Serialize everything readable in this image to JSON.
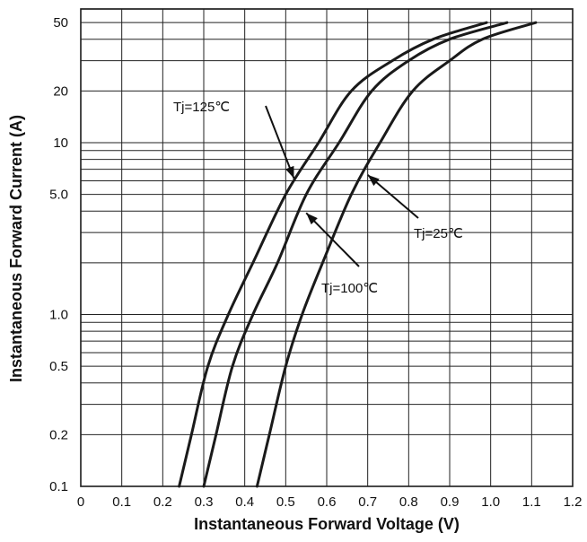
{
  "chart_data": {
    "type": "line",
    "title": "",
    "xlabel": "Instantaneous Forward Voltage (V)",
    "ylabel": "Instantaneous Forward Current (A)",
    "xlim": [
      0,
      1.2
    ],
    "ylim": [
      0.1,
      60
    ],
    "y_scale": "log",
    "grid": true,
    "legend": "none",
    "x_ticks": [
      0,
      0.1,
      0.2,
      0.3,
      0.4,
      0.5,
      0.6,
      0.7,
      0.8,
      0.9,
      1.0,
      1.1,
      1.2
    ],
    "x_tick_labels": [
      "0",
      "0.1",
      "0.2",
      "0.3",
      "0.4",
      "0.5",
      "0.6",
      "0.7",
      "0.8",
      "0.9",
      "1.0",
      "1.1",
      "1.2"
    ],
    "y_ticks": [
      0.1,
      0.2,
      0.5,
      1.0,
      5.0,
      10,
      20,
      50
    ],
    "y_tick_labels": [
      "0.1",
      "0.2",
      "0.5",
      "1.0",
      "5.0",
      "10",
      "20",
      "50"
    ],
    "y_minor_gridlines": [
      0.3,
      0.4,
      0.6,
      0.7,
      0.8,
      0.9,
      2,
      3,
      4,
      6,
      7,
      8,
      9,
      30,
      40
    ],
    "series": [
      {
        "name": "Tj=125℃",
        "x": [
          0.24,
          0.27,
          0.31,
          0.36,
          0.42,
          0.5,
          0.58,
          0.66,
          0.76,
          0.86,
          0.99
        ],
        "y": [
          0.1,
          0.2,
          0.5,
          1.0,
          2.0,
          5.0,
          10,
          20,
          30,
          40,
          50
        ]
      },
      {
        "name": "Tj=100℃",
        "x": [
          0.3,
          0.33,
          0.37,
          0.42,
          0.48,
          0.55,
          0.63,
          0.71,
          0.8,
          0.9,
          1.04
        ],
        "y": [
          0.1,
          0.2,
          0.5,
          1.0,
          2.0,
          5.0,
          10,
          20,
          30,
          40,
          50
        ]
      },
      {
        "name": "Tj=25℃",
        "x": [
          0.43,
          0.46,
          0.5,
          0.54,
          0.59,
          0.66,
          0.73,
          0.81,
          0.9,
          0.98,
          1.11
        ],
        "y": [
          0.1,
          0.2,
          0.5,
          1.0,
          2.0,
          5.0,
          10,
          20,
          30,
          40,
          50
        ]
      }
    ],
    "annotations": [
      {
        "text": "Tj=125℃",
        "arrow_to": [
          0.52,
          6.2
        ]
      },
      {
        "text": "Tj=100℃",
        "arrow_to": [
          0.55,
          3.9
        ]
      },
      {
        "text": "Tj=25℃",
        "arrow_to": [
          0.7,
          6.5
        ]
      }
    ]
  }
}
